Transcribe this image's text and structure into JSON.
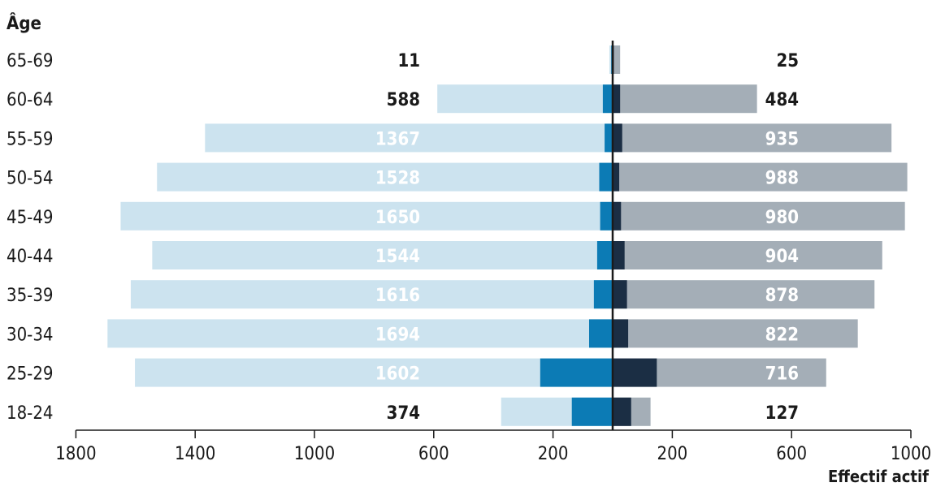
{
  "chart_data": {
    "type": "bar",
    "layout": "population-pyramid",
    "y_title": "Âge",
    "x_title": "Effectif actif",
    "categories": [
      "65-69",
      "60-64",
      "55-59",
      "50-54",
      "45-49",
      "40-44",
      "35-39",
      "30-34",
      "25-29",
      "18-24"
    ],
    "left": {
      "total_labels": [
        "11",
        "588",
        "1367",
        "1528",
        "1650",
        "1544",
        "1616",
        "1694",
        "1602",
        "374"
      ],
      "totals": [
        11,
        588,
        1367,
        1528,
        1650,
        1544,
        1616,
        1694,
        1602,
        374
      ],
      "segment": [
        5,
        33,
        27,
        45,
        42,
        52,
        63,
        79,
        243,
        137
      ]
    },
    "right": {
      "total_labels": [
        "25",
        "484",
        "935",
        "988",
        "980",
        "904",
        "878",
        "822",
        "716",
        "127"
      ],
      "totals": [
        25,
        484,
        935,
        988,
        980,
        904,
        878,
        822,
        716,
        127
      ],
      "segment": [
        4,
        25,
        32,
        22,
        28,
        40,
        48,
        52,
        148,
        62
      ]
    },
    "ticks": {
      "left": [
        1800,
        1400,
        1000,
        600,
        200
      ],
      "right": [
        200,
        600,
        1000
      ],
      "left_labels": [
        "1800",
        "1400",
        "1000",
        "600",
        "200"
      ],
      "right_labels": [
        "200",
        "600",
        "1000"
      ]
    },
    "xlim_left": [
      0,
      1800
    ],
    "xlim_right": [
      0,
      1000
    ],
    "colors": {
      "left_total": "#cce3ef",
      "left_segment": "#0c7bb5",
      "right_total": "#a4aeb7",
      "right_segment": "#1b2e44",
      "axis": "#1a1a1a",
      "label_dark": "#1a1a1a",
      "label_light": "#ffffff"
    }
  }
}
